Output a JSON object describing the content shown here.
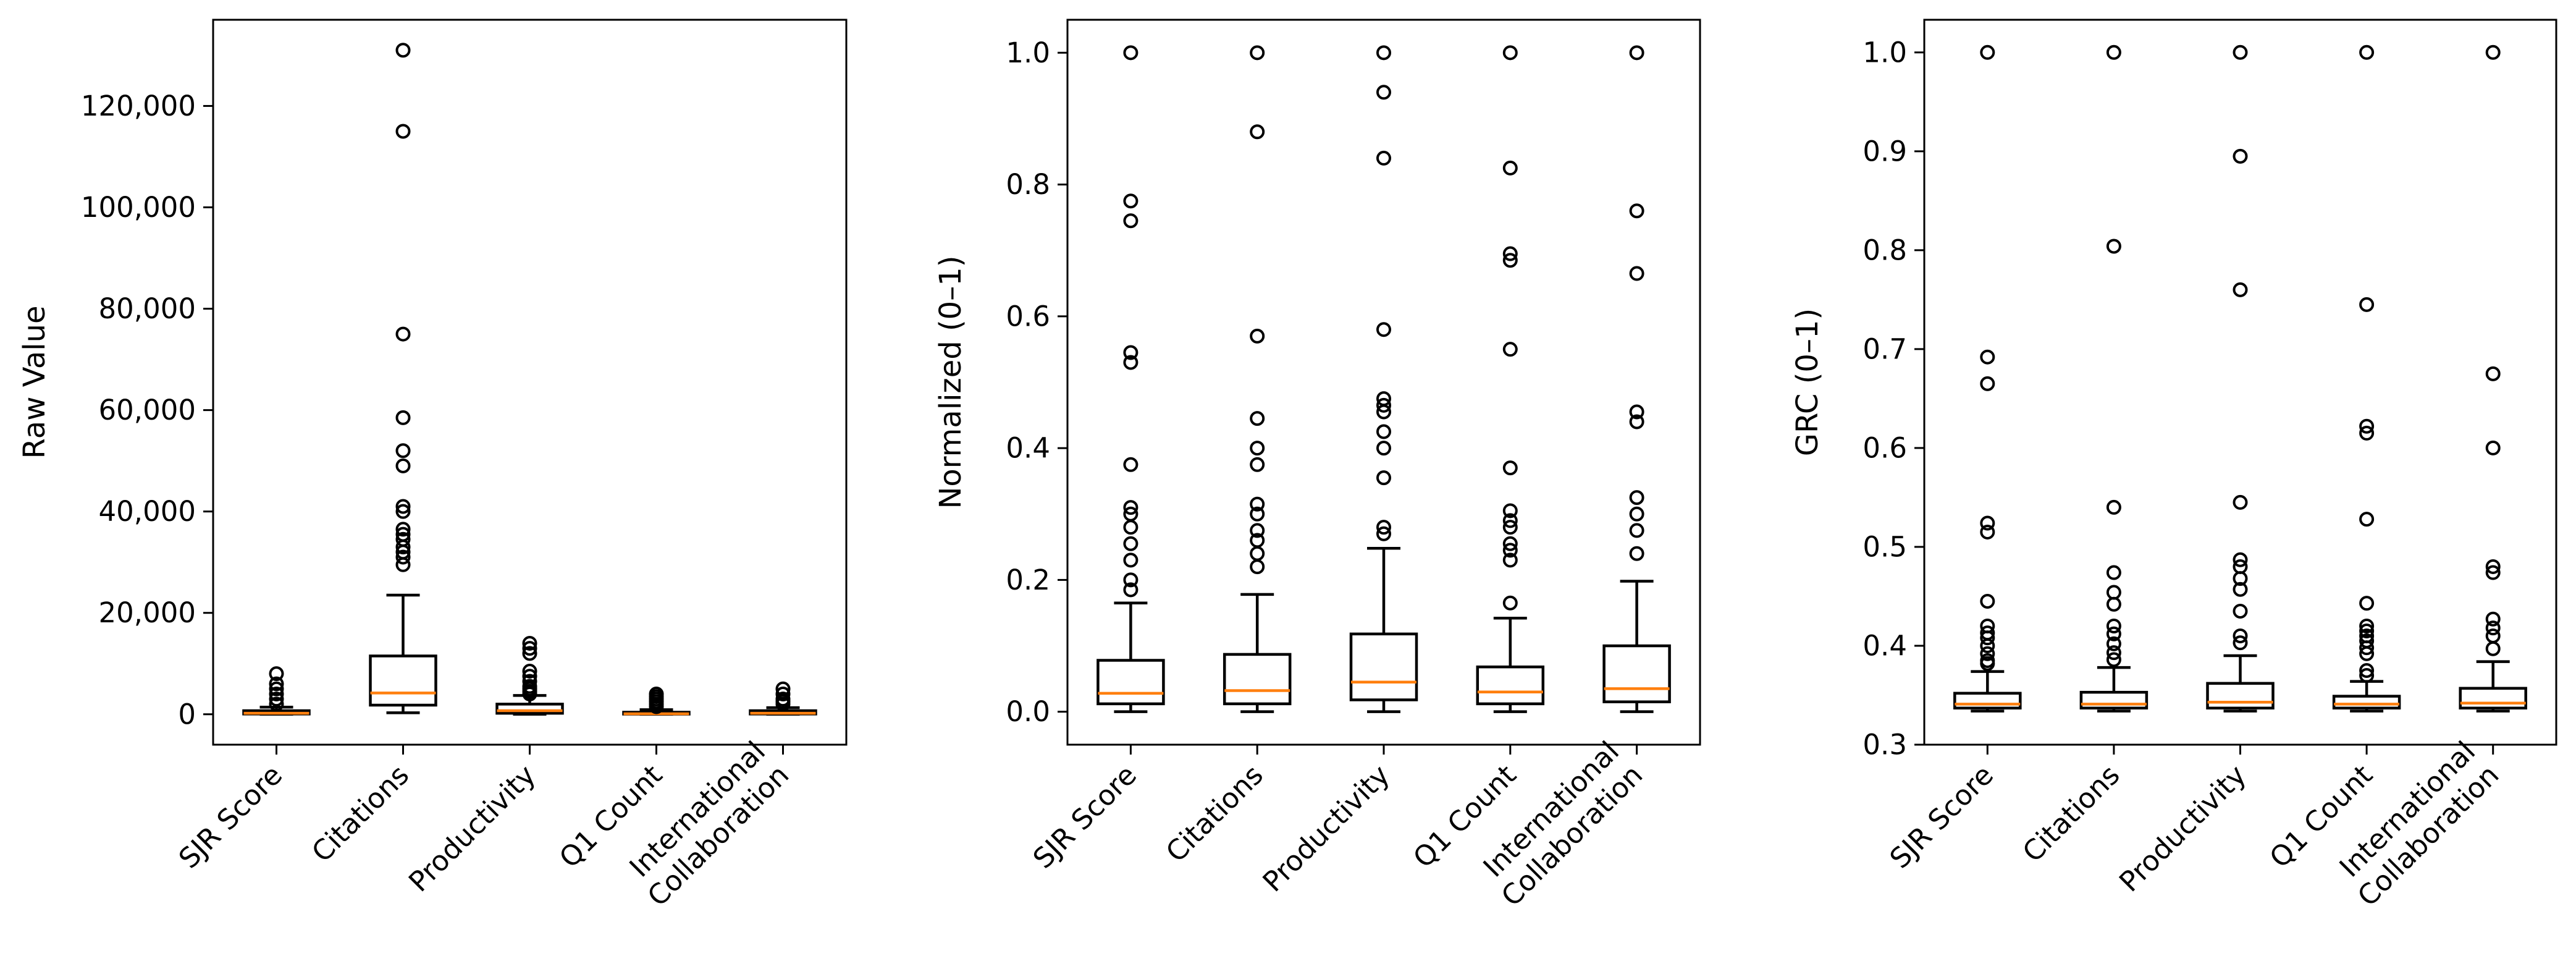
{
  "chart_data": [
    {
      "type": "box",
      "ylabel": "Raw Value",
      "ylim": [
        -6000,
        137000
      ],
      "yticks": [
        0,
        20000,
        40000,
        60000,
        80000,
        100000,
        120000
      ],
      "ytick_labels": [
        "0",
        "20,000",
        "40,000",
        "60,000",
        "80,000",
        "100,000",
        "120,000"
      ],
      "categories": [
        "SJR Score",
        "Citations",
        "Productivity",
        "Q1 Count",
        "International\nCollaboration"
      ],
      "boxes": [
        {
          "whisker_low": 0,
          "q1": 50,
          "median": 200,
          "q3": 700,
          "whisker_high": 1400,
          "outliers": [
            2000,
            3000,
            4000,
            5000,
            6000,
            8000
          ]
        },
        {
          "whisker_low": 300,
          "q1": 1800,
          "median": 4200,
          "q3": 11500,
          "whisker_high": 23500,
          "outliers": [
            29500,
            31000,
            32000,
            33000,
            34500,
            35500,
            36500,
            40000,
            41000,
            49000,
            52000,
            58500,
            75000,
            115000,
            131000
          ]
        },
        {
          "whisker_low": 0,
          "q1": 200,
          "median": 700,
          "q3": 2000,
          "whisker_high": 3700,
          "outliers": [
            4000,
            4500,
            5000,
            5500,
            6500,
            7500,
            8500,
            12000,
            13000,
            14000
          ]
        },
        {
          "whisker_low": 0,
          "q1": 30,
          "median": 100,
          "q3": 400,
          "whisker_high": 900,
          "outliers": [
            1500,
            2000,
            2500,
            3000,
            3500,
            4000
          ]
        },
        {
          "whisker_low": 0,
          "q1": 50,
          "median": 200,
          "q3": 700,
          "whisker_high": 1300,
          "outliers": [
            2000,
            2500,
            3000,
            4000,
            5000
          ]
        }
      ]
    },
    {
      "type": "box",
      "ylabel": "Normalized (0–1)",
      "ylim": [
        -0.05,
        1.05
      ],
      "yticks": [
        0,
        0.2,
        0.4,
        0.6,
        0.8,
        1.0
      ],
      "ytick_labels": [
        "0.0",
        "0.2",
        "0.4",
        "0.6",
        "0.8",
        "1.0"
      ],
      "categories": [
        "SJR Score",
        "Citations",
        "Productivity",
        "Q1 Count",
        "International\nCollaboration"
      ],
      "boxes": [
        {
          "whisker_low": 0.0,
          "q1": 0.012,
          "median": 0.028,
          "q3": 0.078,
          "whisker_high": 0.165,
          "outliers": [
            0.185,
            0.2,
            0.23,
            0.255,
            0.28,
            0.3,
            0.31,
            0.375,
            0.53,
            0.545,
            0.745,
            0.775,
            1.0
          ]
        },
        {
          "whisker_low": 0.0,
          "q1": 0.012,
          "median": 0.032,
          "q3": 0.087,
          "whisker_high": 0.178,
          "outliers": [
            0.22,
            0.24,
            0.26,
            0.275,
            0.3,
            0.315,
            0.375,
            0.4,
            0.445,
            0.57,
            0.88,
            1.0
          ]
        },
        {
          "whisker_low": 0.0,
          "q1": 0.018,
          "median": 0.045,
          "q3": 0.118,
          "whisker_high": 0.248,
          "outliers": [
            0.27,
            0.28,
            0.355,
            0.4,
            0.425,
            0.455,
            0.465,
            0.475,
            0.58,
            0.84,
            0.94,
            1.0
          ]
        },
        {
          "whisker_low": 0.0,
          "q1": 0.012,
          "median": 0.03,
          "q3": 0.068,
          "whisker_high": 0.142,
          "outliers": [
            0.165,
            0.23,
            0.245,
            0.255,
            0.28,
            0.29,
            0.305,
            0.37,
            0.55,
            0.685,
            0.695,
            0.825,
            1.0
          ]
        },
        {
          "whisker_low": 0.0,
          "q1": 0.015,
          "median": 0.035,
          "q3": 0.1,
          "whisker_high": 0.198,
          "outliers": [
            0.24,
            0.275,
            0.3,
            0.325,
            0.44,
            0.455,
            0.665,
            0.76,
            1.0
          ]
        }
      ]
    },
    {
      "type": "box",
      "ylabel": "GRC (0–1)",
      "ylim": [
        0.3,
        1.033
      ],
      "yticks": [
        0.3,
        0.4,
        0.5,
        0.6,
        0.7,
        0.8,
        0.9,
        1.0
      ],
      "ytick_labels": [
        "0.3",
        "0.4",
        "0.5",
        "0.6",
        "0.7",
        "0.8",
        "0.9",
        "1.0"
      ],
      "categories": [
        "SJR Score",
        "Citations",
        "Productivity",
        "Q1 Count",
        "International\nCollaboration"
      ],
      "boxes": [
        {
          "whisker_low": 0.334,
          "q1": 0.337,
          "median": 0.341,
          "q3": 0.352,
          "whisker_high": 0.374,
          "outliers": [
            0.382,
            0.385,
            0.392,
            0.4,
            0.408,
            0.413,
            0.42,
            0.445,
            0.515,
            0.524,
            0.665,
            0.692,
            1.0
          ]
        },
        {
          "whisker_low": 0.334,
          "q1": 0.337,
          "median": 0.341,
          "q3": 0.353,
          "whisker_high": 0.378,
          "outliers": [
            0.386,
            0.393,
            0.402,
            0.412,
            0.42,
            0.442,
            0.454,
            0.474,
            0.54,
            0.804,
            1.0
          ]
        },
        {
          "whisker_low": 0.334,
          "q1": 0.337,
          "median": 0.343,
          "q3": 0.362,
          "whisker_high": 0.39,
          "outliers": [
            0.403,
            0.41,
            0.435,
            0.457,
            0.468,
            0.48,
            0.487,
            0.545,
            0.76,
            0.895,
            1.0
          ]
        },
        {
          "whisker_low": 0.334,
          "q1": 0.337,
          "median": 0.341,
          "q3": 0.349,
          "whisker_high": 0.364,
          "outliers": [
            0.37,
            0.375,
            0.392,
            0.398,
            0.405,
            0.41,
            0.415,
            0.42,
            0.443,
            0.528,
            0.615,
            0.622,
            0.745,
            1.0
          ]
        },
        {
          "whisker_low": 0.334,
          "q1": 0.337,
          "median": 0.342,
          "q3": 0.357,
          "whisker_high": 0.384,
          "outliers": [
            0.397,
            0.41,
            0.418,
            0.427,
            0.474,
            0.48,
            0.6,
            0.675,
            1.0
          ]
        }
      ]
    }
  ],
  "colors": {
    "box": "#000000",
    "median": "#ff7f0e",
    "outlier_edge": "#000000",
    "background": "#ffffff"
  }
}
